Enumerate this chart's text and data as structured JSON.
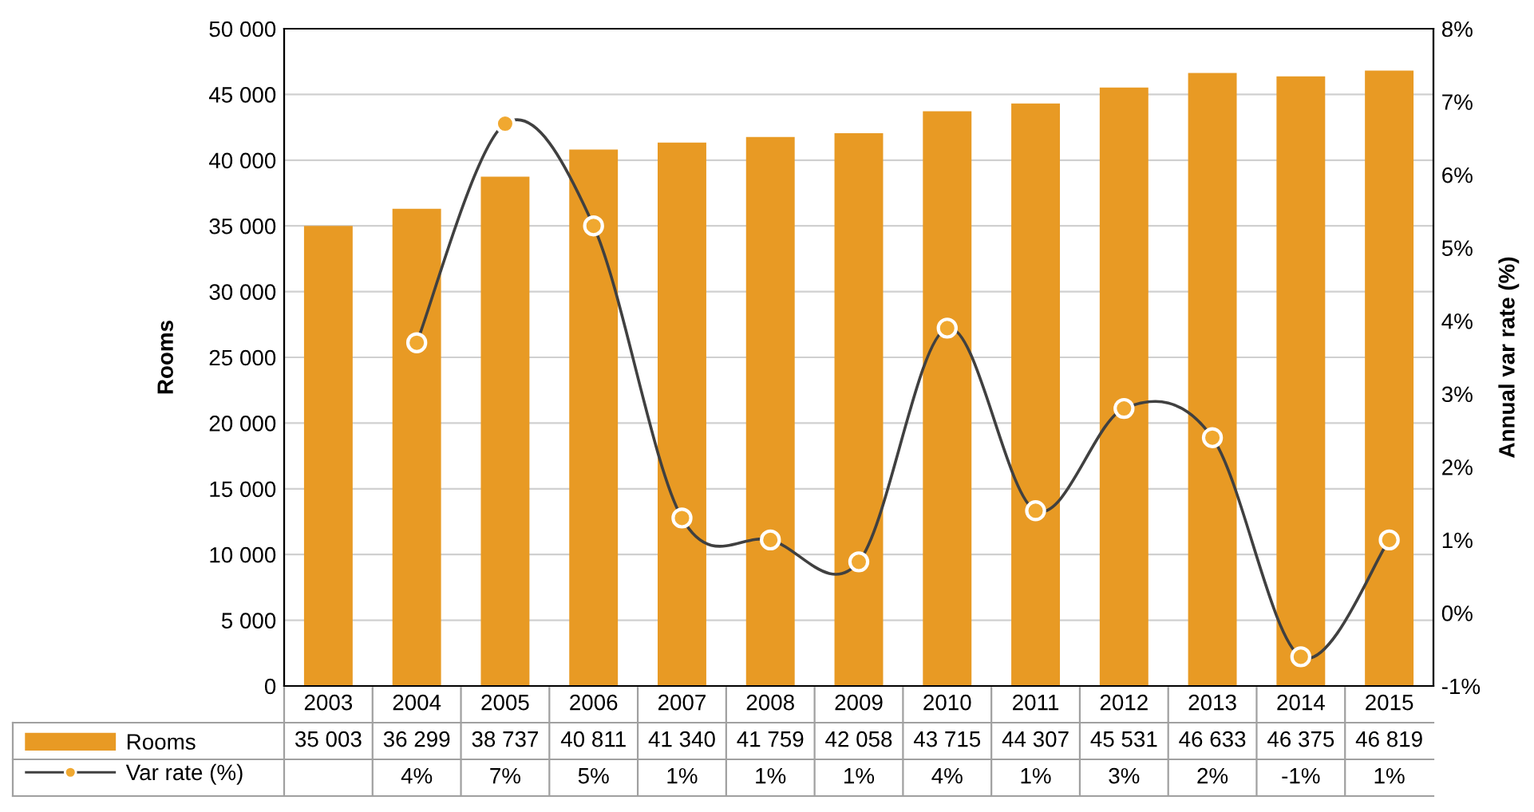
{
  "chart_data": {
    "type": "bar",
    "ylabel": "Rooms",
    "y2label": "Annual var rate (%)",
    "categories": [
      "2003",
      "2004",
      "2005",
      "2006",
      "2007",
      "2008",
      "2009",
      "2010",
      "2011",
      "2012",
      "2013",
      "2014",
      "2015"
    ],
    "series": [
      {
        "name": "Rooms",
        "color": "#e89a24",
        "values": [
          35003,
          36299,
          38737,
          40811,
          41340,
          41759,
          42058,
          43715,
          44307,
          45531,
          46633,
          46375,
          46819
        ],
        "value_labels": [
          "35 003",
          "36 299",
          "38 737",
          "40 811",
          "41 340",
          "41 759",
          "42 058",
          "43 715",
          "44 307",
          "45 531",
          "46 633",
          "46 375",
          "46 819"
        ]
      },
      {
        "name": "Var rate (%)",
        "type": "line",
        "axis": "y2",
        "color": "#404040",
        "marker": "circle",
        "values": [
          null,
          3.7,
          6.7,
          5.3,
          1.3,
          1.0,
          0.7,
          3.9,
          1.4,
          2.8,
          2.4,
          -0.6,
          1.0
        ],
        "value_labels": [
          null,
          "4%",
          "7%",
          "5%",
          "1%",
          "1%",
          "1%",
          "4%",
          "1%",
          "3%",
          "2%",
          "-1%",
          "1%"
        ]
      }
    ],
    "ylim": [
      0,
      50000
    ],
    "yticks": [
      {
        "value": 0,
        "label": "0"
      },
      {
        "value": 5000,
        "label": "5 000"
      },
      {
        "value": 10000,
        "label": "10 000"
      },
      {
        "value": 15000,
        "label": "15 000"
      },
      {
        "value": 20000,
        "label": "20 000"
      },
      {
        "value": 25000,
        "label": "25 000"
      },
      {
        "value": 30000,
        "label": "30 000"
      },
      {
        "value": 35000,
        "label": "35 000"
      },
      {
        "value": 40000,
        "label": "40 000"
      },
      {
        "value": 45000,
        "label": "45 000"
      },
      {
        "value": 50000,
        "label": "50 000"
      }
    ],
    "y2lim": [
      -1,
      8
    ],
    "y2ticks": [
      {
        "value": -1,
        "label": "-1%"
      },
      {
        "value": 0,
        "label": "0%"
      },
      {
        "value": 1,
        "label": "1%"
      },
      {
        "value": 2,
        "label": "2%"
      },
      {
        "value": 3,
        "label": "3%"
      },
      {
        "value": 4,
        "label": "4%"
      },
      {
        "value": 5,
        "label": "5%"
      },
      {
        "value": 6,
        "label": "6%"
      },
      {
        "value": 7,
        "label": "7%"
      },
      {
        "value": 8,
        "label": "8%"
      }
    ],
    "grid": "y",
    "legend": "bottom"
  }
}
